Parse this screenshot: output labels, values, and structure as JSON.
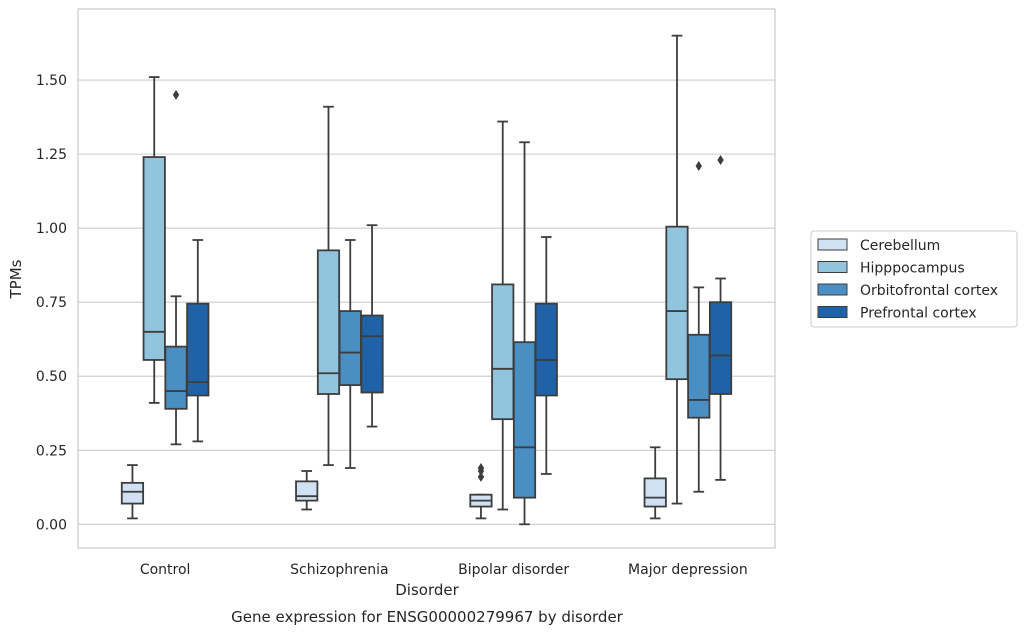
{
  "caption": "Gene expression for ENSG00000279967 by disorder",
  "chart_data": {
    "type": "box",
    "xlabel": "Disorder",
    "ylabel": "TPMs",
    "ylim": [
      -0.08,
      1.74
    ],
    "yticks": [
      0.0,
      0.25,
      0.5,
      0.75,
      1.0,
      1.25,
      1.5
    ],
    "ytick_labels": [
      "0.00",
      "0.25",
      "0.50",
      "0.75",
      "1.00",
      "1.25",
      "1.50"
    ],
    "grid": true,
    "legend_position": "right",
    "categories": [
      "Control",
      "Schizophrenia",
      "Bipolar disorder",
      "Major depression"
    ],
    "series": [
      {
        "name": "Cerebellum",
        "color": "#cfe1f2",
        "boxes": [
          {
            "whislo": 0.02,
            "q1": 0.07,
            "med": 0.11,
            "q3": 0.14,
            "whishi": 0.2,
            "fliers": []
          },
          {
            "whislo": 0.05,
            "q1": 0.08,
            "med": 0.095,
            "q3": 0.145,
            "whishi": 0.18,
            "fliers": []
          },
          {
            "whislo": 0.02,
            "q1": 0.06,
            "med": 0.08,
            "q3": 0.1,
            "whishi": 0.1,
            "fliers": [
              0.16,
              0.18,
              0.19
            ]
          },
          {
            "whislo": 0.02,
            "q1": 0.06,
            "med": 0.09,
            "q3": 0.155,
            "whishi": 0.26,
            "fliers": []
          }
        ]
      },
      {
        "name": "Hipppocampus",
        "color": "#93c4de",
        "boxes": [
          {
            "whislo": 0.41,
            "q1": 0.555,
            "med": 0.65,
            "q3": 1.24,
            "whishi": 1.51,
            "fliers": []
          },
          {
            "whislo": 0.2,
            "q1": 0.44,
            "med": 0.51,
            "q3": 0.925,
            "whishi": 1.41,
            "fliers": []
          },
          {
            "whislo": 0.05,
            "q1": 0.355,
            "med": 0.525,
            "q3": 0.81,
            "whishi": 1.36,
            "fliers": []
          },
          {
            "whislo": 0.07,
            "q1": 0.49,
            "med": 0.72,
            "q3": 1.005,
            "whishi": 1.65,
            "fliers": []
          }
        ]
      },
      {
        "name": "Orbitofrontal cortex",
        "color": "#4a8fc4",
        "boxes": [
          {
            "whislo": 0.27,
            "q1": 0.39,
            "med": 0.45,
            "q3": 0.6,
            "whishi": 0.77,
            "fliers": [
              1.45
            ]
          },
          {
            "whislo": 0.19,
            "q1": 0.47,
            "med": 0.58,
            "q3": 0.72,
            "whishi": 0.96,
            "fliers": []
          },
          {
            "whislo": 0.0,
            "q1": 0.09,
            "med": 0.26,
            "q3": 0.615,
            "whishi": 1.29,
            "fliers": []
          },
          {
            "whislo": 0.11,
            "q1": 0.36,
            "med": 0.42,
            "q3": 0.64,
            "whishi": 0.8,
            "fliers": [
              1.21
            ]
          }
        ]
      },
      {
        "name": "Prefrontal cortex",
        "color": "#1f62a8",
        "boxes": [
          {
            "whislo": 0.28,
            "q1": 0.435,
            "med": 0.48,
            "q3": 0.745,
            "whishi": 0.96,
            "fliers": []
          },
          {
            "whislo": 0.33,
            "q1": 0.445,
            "med": 0.635,
            "q3": 0.705,
            "whishi": 1.01,
            "fliers": []
          },
          {
            "whislo": 0.17,
            "q1": 0.435,
            "med": 0.555,
            "q3": 0.745,
            "whishi": 0.97,
            "fliers": []
          },
          {
            "whislo": 0.15,
            "q1": 0.44,
            "med": 0.57,
            "q3": 0.75,
            "whishi": 0.83,
            "fliers": [
              1.23
            ]
          }
        ]
      }
    ]
  }
}
